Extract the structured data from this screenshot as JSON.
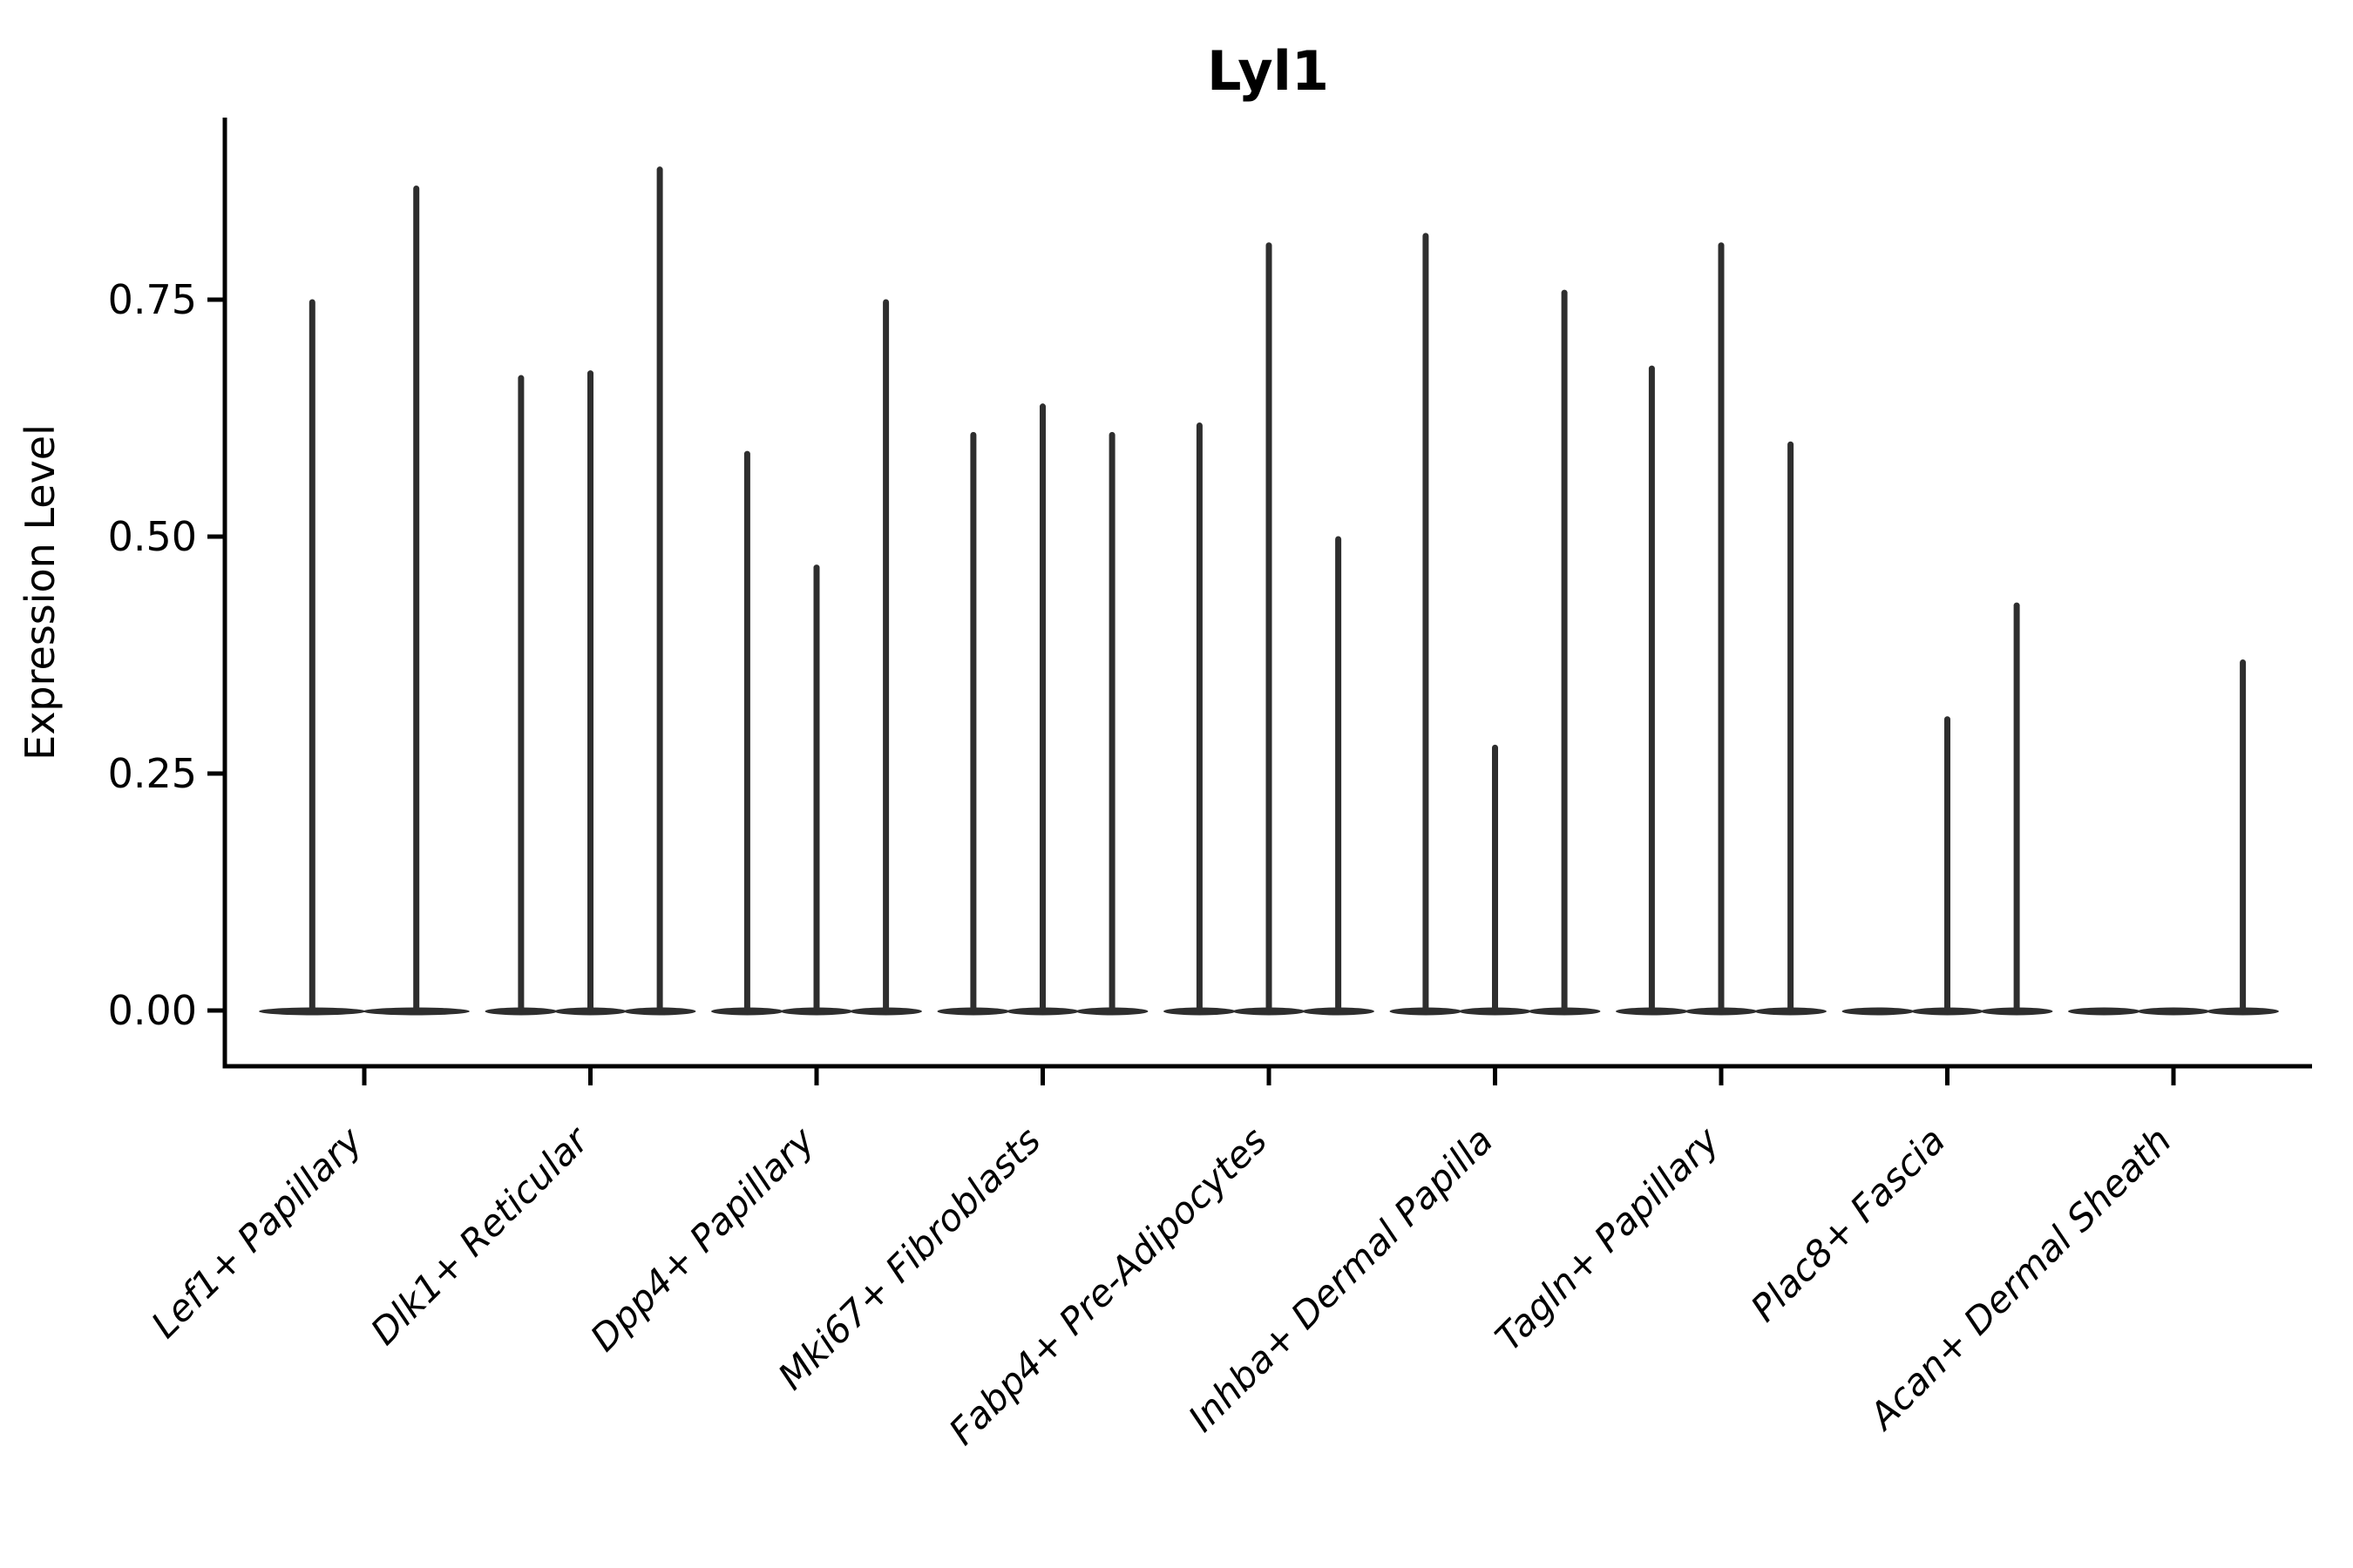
{
  "chart_data": {
    "type": "violin",
    "title": "Lyl1",
    "ylabel": "Expression Level",
    "xlabel": "",
    "background_color": "#ffffff",
    "axis_color": "#000000",
    "violin_color": "#2e2e2e",
    "grid": false,
    "legend": false,
    "ylim": [
      -0.06,
      0.94
    ],
    "x_label_rotation_deg": 45,
    "x_label_style": "italic",
    "yticks": [
      {
        "label": "0.00",
        "value": 0.0
      },
      {
        "label": "0.25",
        "value": 0.25
      },
      {
        "label": "0.50",
        "value": 0.5
      },
      {
        "label": "0.75",
        "value": 0.75
      }
    ],
    "groups": [
      {
        "label": "Lef1+ Papillary",
        "violin_maxima": [
          0.75,
          0.87
        ]
      },
      {
        "label": "Dlk1+ Reticular",
        "violin_maxima": [
          0.67,
          0.675,
          0.89
        ]
      },
      {
        "label": "Dpp4+ Papillary",
        "violin_maxima": [
          0.59,
          0.47,
          0.75
        ]
      },
      {
        "label": "Mki67+ Fibroblasts",
        "violin_maxima": [
          0.61,
          0.64,
          0.61
        ]
      },
      {
        "label": "Fabp4+ Pre-Adipocytes",
        "violin_maxima": [
          0.62,
          0.81,
          0.5
        ]
      },
      {
        "label": "Inhba+ Dermal Papilla",
        "violin_maxima": [
          0.82,
          0.28,
          0.76
        ]
      },
      {
        "label": "Tagln+ Papillary",
        "violin_maxima": [
          0.68,
          0.81,
          0.6
        ]
      },
      {
        "label": "Plac8+ Fascia",
        "violin_maxima": [
          0,
          0.31,
          0.43
        ]
      },
      {
        "label": "Acan+ Dermal Sheath",
        "violin_maxima": [
          0,
          0,
          0.37
        ]
      }
    ]
  }
}
